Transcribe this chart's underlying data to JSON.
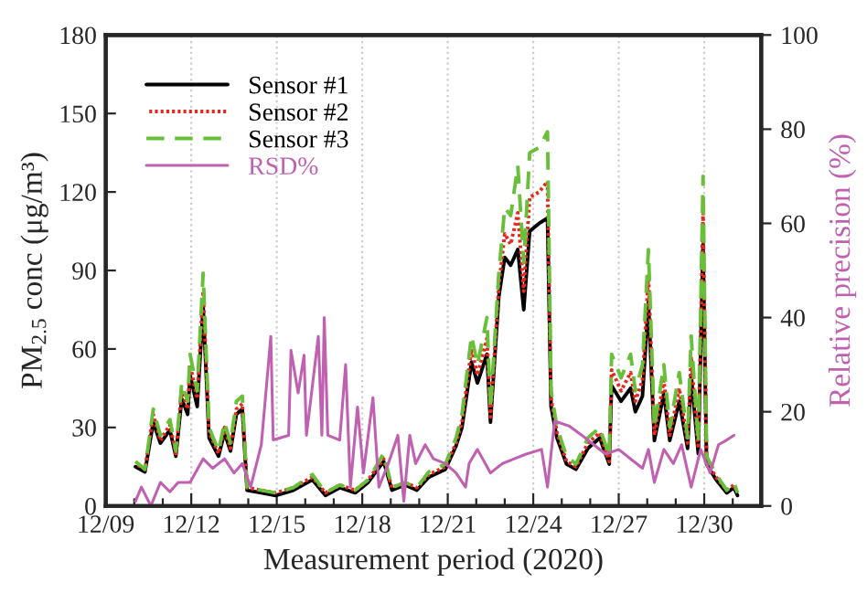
{
  "chart_data": {
    "type": "line",
    "xlabel": "Measurement period (2020)",
    "ylabel": "PM$_{2.5}$ conc (μg/m³)",
    "y2label": "Relative precision (%)",
    "xlim": [
      "2020-12-09",
      "2021-01-01"
    ],
    "xticks": [
      {
        "value": "2020-12-09",
        "label": "12/09"
      },
      {
        "value": "2020-12-10",
        "label": null
      },
      {
        "value": "2020-12-11",
        "label": null
      },
      {
        "value": "2020-12-12",
        "label": "12/12"
      },
      {
        "value": "2020-12-13",
        "label": null
      },
      {
        "value": "2020-12-14",
        "label": null
      },
      {
        "value": "2020-12-15",
        "label": "12/15"
      },
      {
        "value": "2020-12-16",
        "label": null
      },
      {
        "value": "2020-12-17",
        "label": null
      },
      {
        "value": "2020-12-18",
        "label": "12/18"
      },
      {
        "value": "2020-12-19",
        "label": null
      },
      {
        "value": "2020-12-20",
        "label": null
      },
      {
        "value": "2020-12-21",
        "label": "12/21"
      },
      {
        "value": "2020-12-22",
        "label": null
      },
      {
        "value": "2020-12-23",
        "label": null
      },
      {
        "value": "2020-12-24",
        "label": "12/24"
      },
      {
        "value": "2020-12-25",
        "label": null
      },
      {
        "value": "2020-12-26",
        "label": null
      },
      {
        "value": "2020-12-27",
        "label": "12/27"
      },
      {
        "value": "2020-12-28",
        "label": null
      },
      {
        "value": "2020-12-29",
        "label": null
      },
      {
        "value": "2020-12-30",
        "label": "12/30"
      },
      {
        "value": "2020-12-31",
        "label": null
      }
    ],
    "ylim": [
      0,
      180
    ],
    "yticks": [
      0,
      30,
      60,
      90,
      120,
      150,
      180
    ],
    "y2lim": [
      0,
      100
    ],
    "y2ticks": [
      0,
      20,
      40,
      60,
      80,
      100
    ],
    "grid": "x",
    "legend": "top left",
    "marker": "none",
    "x": [
      "2020-12-10T01:00",
      "2020-12-10T09:00",
      "2020-12-10T16:00",
      "2020-12-10T22:00",
      "2020-12-11T06:00",
      "2020-12-11T11:00",
      "2020-12-11T16:00",
      "2020-12-11T21:00",
      "2020-12-11T23:00",
      "2020-12-12T05:00",
      "2020-12-12T10:00",
      "2020-12-12T15:00",
      "2020-12-12T23:00",
      "2020-12-13T04:00",
      "2020-12-13T09:00",
      "2020-12-13T14:00",
      "2020-12-13T19:00",
      "2020-12-13T23:00",
      "2020-12-14T11:00",
      "2020-12-14T23:00",
      "2020-12-15T14:00",
      "2020-12-16T06:00",
      "2020-12-16T17:00",
      "2020-12-17T05:00",
      "2020-12-17T18:00",
      "2020-12-18T05:00",
      "2020-12-18T18:00",
      "2020-12-19T01:00",
      "2020-12-19T12:00",
      "2020-12-19T22:00",
      "2020-12-20T08:00",
      "2020-12-20T22:00",
      "2020-12-21T07:00",
      "2020-12-21T12:00",
      "2020-12-21T20:00",
      "2020-12-22T01:00",
      "2020-12-22T09:00",
      "2020-12-22T12:00",
      "2020-12-22T19:00",
      "2020-12-23T00:00",
      "2020-12-23T05:00",
      "2020-12-23T11:00",
      "2020-12-23T16:00",
      "2020-12-23T21:00",
      "2020-12-24T05:00",
      "2020-12-24T12:00",
      "2020-12-24T15:00",
      "2020-12-24T20:00",
      "2020-12-25T04:00",
      "2020-12-25T12:00",
      "2020-12-25T22:00",
      "2020-12-26T08:00",
      "2020-12-26T16:00",
      "2020-12-26T18:00",
      "2020-12-27T02:00",
      "2020-12-27T10:00",
      "2020-12-27T14:00",
      "2020-12-27T20:00",
      "2020-12-28T01:00",
      "2020-12-28T06:00",
      "2020-12-28T14:00",
      "2020-12-28T19:00",
      "2020-12-29T03:00",
      "2020-12-29T10:00",
      "2020-12-29T13:00",
      "2020-12-29T19:00",
      "2020-12-29T23:00",
      "2020-12-30T02:00",
      "2020-12-30T10:00",
      "2020-12-30T19:00",
      "2020-12-31T01:00",
      "2020-12-31T04:00"
    ],
    "series": [
      {
        "name": "Sensor #1",
        "color": "#000000",
        "line_style": "solid",
        "values": [
          15,
          13,
          32,
          24,
          29,
          19,
          41,
          35,
          50,
          38,
          76,
          26,
          19,
          28,
          21,
          35,
          37,
          6,
          5,
          4,
          6,
          10,
          4,
          7,
          5,
          9,
          17,
          6,
          8,
          6,
          11,
          14,
          23,
          30,
          55,
          47,
          58,
          32,
          80,
          95,
          92,
          98,
          75,
          105,
          108,
          110,
          38,
          26,
          16,
          14,
          22,
          26,
          16,
          46,
          40,
          45,
          36,
          42,
          78,
          25,
          43,
          25,
          40,
          22,
          50,
          20,
          100,
          16,
          10,
          5,
          7,
          4
        ]
      },
      {
        "name": "Sensor #2",
        "color": "#e8261c",
        "line_style": "dotted",
        "values": [
          16,
          14,
          35,
          25,
          31,
          20,
          44,
          37,
          54,
          41,
          82,
          28,
          20,
          30,
          22,
          37,
          39,
          7,
          6,
          5,
          7,
          11,
          5,
          8,
          6,
          10,
          18,
          7,
          9,
          7,
          12,
          15,
          24,
          32,
          60,
          50,
          64,
          34,
          84,
          104,
          100,
          112,
          82,
          118,
          120,
          124,
          41,
          28,
          17,
          15,
          24,
          28,
          17,
          52,
          44,
          51,
          40,
          48,
          88,
          27,
          48,
          27,
          45,
          24,
          57,
          22,
          112,
          17,
          11,
          6,
          8,
          5
        ]
      },
      {
        "name": "Sensor #3",
        "color": "#6abf3a",
        "line_style": "dashed",
        "values": [
          17,
          14,
          37,
          27,
          33,
          21,
          47,
          40,
          58,
          44,
          89,
          30,
          21,
          32,
          24,
          40,
          42,
          7,
          6,
          5,
          7,
          12,
          5,
          8,
          6,
          10,
          20,
          7,
          9,
          7,
          13,
          16,
          26,
          35,
          65,
          54,
          72,
          37,
          89,
          114,
          111,
          130,
          93,
          135,
          137,
          143,
          44,
          30,
          19,
          16,
          26,
          30,
          19,
          58,
          49,
          58,
          44,
          54,
          98,
          30,
          54,
          30,
          51,
          26,
          65,
          24,
          126,
          19,
          12,
          6,
          9,
          5
        ]
      },
      {
        "name": "RSD%",
        "color": "#c060b0",
        "line_style": "solid",
        "axis": "y2",
        "x": [
          "2020-12-10T01:00",
          "2020-12-10T06:00",
          "2020-12-10T14:00",
          "2020-12-10T22:00",
          "2020-12-11T06:00",
          "2020-12-11T13:00",
          "2020-12-11T23:00",
          "2020-12-12T10:00",
          "2020-12-12T18:00",
          "2020-12-13T04:00",
          "2020-12-13T12:00",
          "2020-12-13T19:00",
          "2020-12-14T02:00",
          "2020-12-14T11:00",
          "2020-12-14T19:00",
          "2020-12-14T21:00",
          "2020-12-15T10:00",
          "2020-12-15T12:00",
          "2020-12-15T18:00",
          "2020-12-15T23:00",
          "2020-12-16T01:00",
          "2020-12-16T11:00",
          "2020-12-16T14:00",
          "2020-12-16T16:00",
          "2020-12-16T19:00",
          "2020-12-17T05:00",
          "2020-12-17T10:00",
          "2020-12-17T14:00",
          "2020-12-17T20:00",
          "2020-12-18T01:00",
          "2020-12-18T09:00",
          "2020-12-18T14:00",
          "2020-12-18T22:00",
          "2020-12-19T06:00",
          "2020-12-19T11:00",
          "2020-12-19T16:00",
          "2020-12-19T21:00",
          "2020-12-20T05:00",
          "2020-12-20T12:00",
          "2020-12-20T22:00",
          "2020-12-21T07:00",
          "2020-12-21T15:00",
          "2020-12-21T18:00",
          "2020-12-22T01:00",
          "2020-12-22T12:00",
          "2020-12-22T22:00",
          "2020-12-23T08:00",
          "2020-12-23T18:00",
          "2020-12-24T07:00",
          "2020-12-24T12:00",
          "2020-12-24T18:00",
          "2020-12-25T06:00",
          "2020-12-25T17:00",
          "2020-12-26T03:00",
          "2020-12-26T13:00",
          "2020-12-27T00:00",
          "2020-12-27T10:00",
          "2020-12-27T20:00",
          "2020-12-28T01:00",
          "2020-12-28T06:00",
          "2020-12-28T14:00",
          "2020-12-28T22:00",
          "2020-12-29T05:00",
          "2020-12-29T13:00",
          "2020-12-29T21:00",
          "2020-12-30T05:00",
          "2020-12-30T12:00",
          "2020-12-30T19:00",
          "2020-12-31T01:00"
        ],
        "values": [
          1,
          4,
          0,
          5,
          3,
          5,
          5,
          10,
          8,
          10,
          7,
          9,
          4,
          13,
          36,
          14,
          15,
          33,
          24,
          32,
          15,
          36,
          15,
          40,
          15,
          14,
          30,
          4,
          21,
          7,
          23,
          4,
          9,
          15,
          1,
          15,
          9,
          13,
          10,
          9,
          7,
          4,
          9,
          12,
          7,
          9,
          10,
          11,
          12,
          4,
          18,
          17,
          15,
          13,
          11,
          12,
          10,
          8,
          12,
          5,
          12,
          9,
          13,
          4,
          12,
          7,
          13,
          14,
          15
        ]
      }
    ]
  }
}
